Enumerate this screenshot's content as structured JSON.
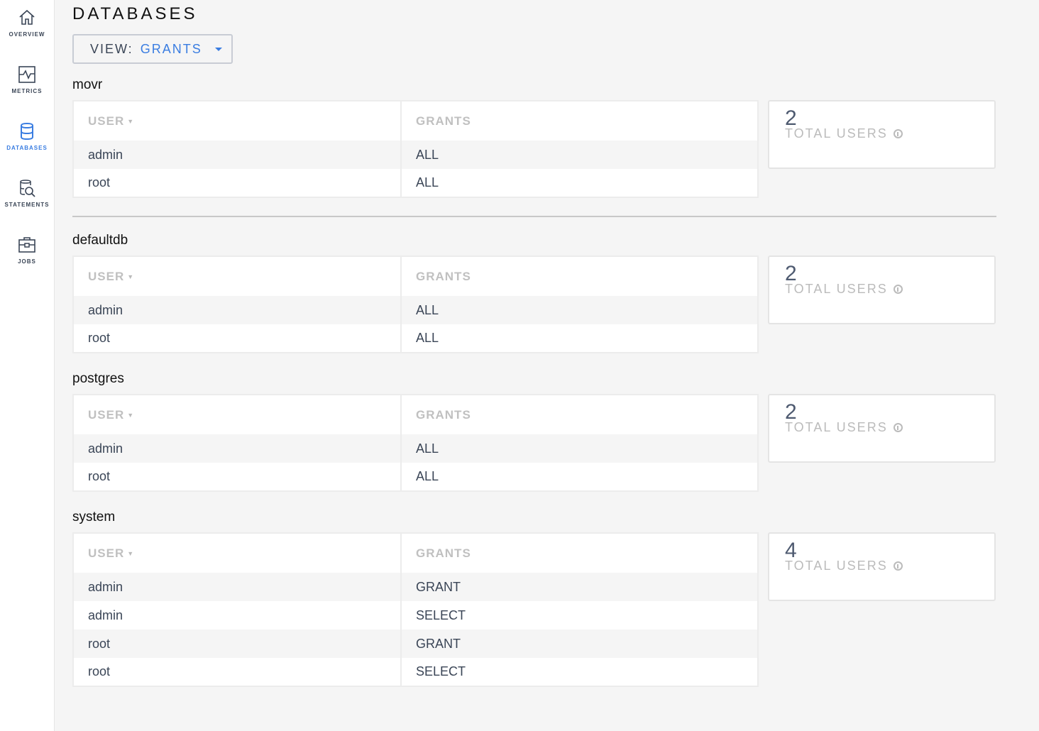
{
  "sidebar": {
    "items": [
      {
        "label": "OVERVIEW",
        "icon": "home-icon"
      },
      {
        "label": "METRICS",
        "icon": "metrics-icon"
      },
      {
        "label": "DATABASES",
        "icon": "database-icon",
        "active": true
      },
      {
        "label": "STATEMENTS",
        "icon": "statements-icon"
      },
      {
        "label": "JOBS",
        "icon": "jobs-icon"
      }
    ]
  },
  "header": {
    "title": "DATABASES",
    "view_label": "VIEW:",
    "view_value": "GRANTS"
  },
  "colors": {
    "accent": "#3a7de1",
    "text": "#3a4556"
  },
  "table_headers": {
    "user": "USER",
    "grants": "GRANTS"
  },
  "card_label": "TOTAL USERS",
  "databases": [
    {
      "name": "movr",
      "total_users": "2",
      "rows": [
        [
          "admin",
          "ALL"
        ],
        [
          "root",
          "ALL"
        ]
      ]
    },
    {
      "name": "defaultdb",
      "total_users": "2",
      "rows": [
        [
          "admin",
          "ALL"
        ],
        [
          "root",
          "ALL"
        ]
      ]
    },
    {
      "name": "postgres",
      "total_users": "2",
      "rows": [
        [
          "admin",
          "ALL"
        ],
        [
          "root",
          "ALL"
        ]
      ]
    },
    {
      "name": "system",
      "total_users": "4",
      "rows": [
        [
          "admin",
          "GRANT"
        ],
        [
          "admin",
          "SELECT"
        ],
        [
          "root",
          "GRANT"
        ],
        [
          "root",
          "SELECT"
        ]
      ]
    }
  ]
}
